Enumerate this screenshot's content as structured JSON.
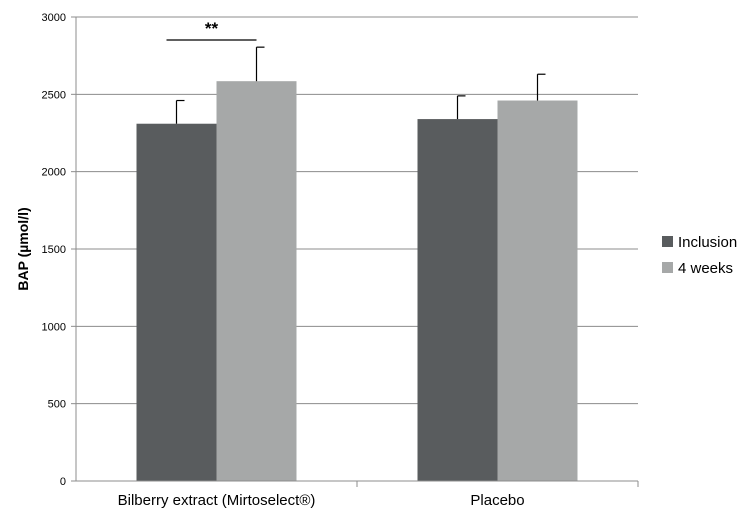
{
  "chart_data": {
    "type": "bar",
    "title": "",
    "xlabel": "",
    "ylabel": "BAP (µmol/l)",
    "ylim": [
      0,
      3000
    ],
    "yticks": [
      0,
      500,
      1000,
      1500,
      2000,
      2500,
      3000
    ],
    "grid": true,
    "legend_position": "right",
    "categories": [
      "Bilberry extract (Mirtoselect®)",
      "Placebo"
    ],
    "series": [
      {
        "name": "Inclusion",
        "color": "#595c5e",
        "values": [
          2310,
          2340
        ],
        "errors": [
          150,
          150
        ]
      },
      {
        "name": "4 weeks",
        "color": "#a6a8a8",
        "values": [
          2585,
          2460
        ],
        "errors": [
          220,
          170
        ]
      }
    ],
    "annotations": [
      {
        "text": "**",
        "category": "Bilberry extract (Mirtoselect®)",
        "note": "significance bracket between Inclusion and 4 weeks"
      }
    ]
  }
}
